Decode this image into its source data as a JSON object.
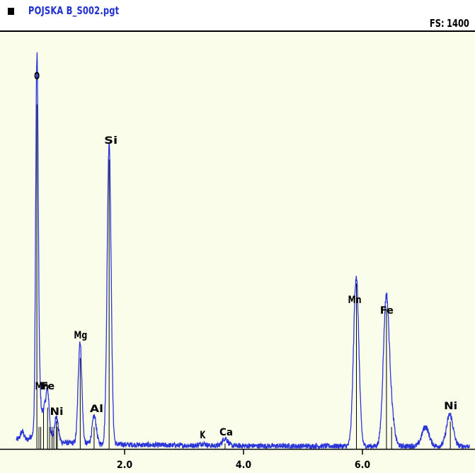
{
  "header": {
    "file_name": "POJSKA B_S002.pgt",
    "fs_label": "FS:",
    "fs_value": "1400"
  },
  "colors": {
    "spectrum_line": "#2b36d8",
    "plot_background": "#fafde9",
    "title_text": "#1f2fd0",
    "marker_lines": "#000000"
  },
  "chart_data": {
    "type": "line",
    "xlim": [
      0.0,
      7.8
    ],
    "ylim": [
      0,
      1400
    ],
    "x_ticks": [
      {
        "value": 2.0,
        "label": "2.0"
      },
      {
        "value": 4.0,
        "label": "4.0"
      },
      {
        "value": 6.0,
        "label": "6.0"
      }
    ],
    "grid": false,
    "series": [
      {
        "peaks": [
          {
            "x": 0.28,
            "y": 30,
            "w": 0.03
          },
          {
            "x": 0.45,
            "y": 20,
            "w": 0.04
          },
          {
            "x": 0.525,
            "y": 1300,
            "w": 0.021
          },
          {
            "x": 0.56,
            "y": 200,
            "w": 0.03
          },
          {
            "x": 0.64,
            "y": 100,
            "w": 0.03
          },
          {
            "x": 0.705,
            "y": 180,
            "w": 0.03
          },
          {
            "x": 0.85,
            "y": 90,
            "w": 0.035
          },
          {
            "x": 1.25,
            "y": 370,
            "w": 0.031
          },
          {
            "x": 1.49,
            "y": 100,
            "w": 0.035
          },
          {
            "x": 1.74,
            "y": 1100,
            "w": 0.033
          },
          {
            "x": 3.31,
            "y": 8,
            "w": 0.05
          },
          {
            "x": 3.69,
            "y": 28,
            "w": 0.045
          },
          {
            "x": 5.895,
            "y": 620,
            "w": 0.044
          },
          {
            "x": 6.4,
            "y": 530,
            "w": 0.05
          },
          {
            "x": 6.49,
            "y": 90,
            "w": 0.05
          },
          {
            "x": 7.06,
            "y": 70,
            "w": 0.06
          },
          {
            "x": 7.47,
            "y": 115,
            "w": 0.055
          }
        ],
        "background": {
          "base": 10,
          "amplitude": 14,
          "decay": 0.8
        },
        "noise": 8
      }
    ],
    "element_markers": [
      {
        "label": "O",
        "x": 0.525,
        "marker_height": 1250
      },
      {
        "label": "Mn",
        "x": 0.637,
        "marker_height": 150
      },
      {
        "label": "Fe",
        "x": 0.705,
        "marker_height": 150
      },
      {
        "label": "Ni",
        "x": 0.851,
        "marker_height": 100
      },
      {
        "label": "Mg",
        "x": 1.254,
        "marker_height": 330
      },
      {
        "label": "Al",
        "x": 1.487,
        "marker_height": 80
      },
      {
        "label": "Si",
        "x": 1.74,
        "marker_height": 1050
      },
      {
        "label": "K",
        "x": 3.313,
        "marker_height": 0
      },
      {
        "label": "Ca",
        "x": 3.69,
        "marker_height": 20
      },
      {
        "label": "Mn",
        "x": 5.899,
        "marker_height": 600
      },
      {
        "label": "Fe",
        "x": 6.404,
        "marker_height": 510
      },
      {
        "label": "Ni",
        "x": 7.478,
        "marker_height": 100
      }
    ],
    "minor_markers": [
      {
        "x": 0.56,
        "marker_height": 80
      },
      {
        "x": 0.59,
        "marker_height": 80
      },
      {
        "x": 0.74,
        "marker_height": 80
      },
      {
        "x": 0.78,
        "marker_height": 80
      },
      {
        "x": 0.81,
        "marker_height": 80
      },
      {
        "x": 0.87,
        "marker_height": 80
      },
      {
        "x": 6.49,
        "marker_height": 80
      }
    ]
  }
}
